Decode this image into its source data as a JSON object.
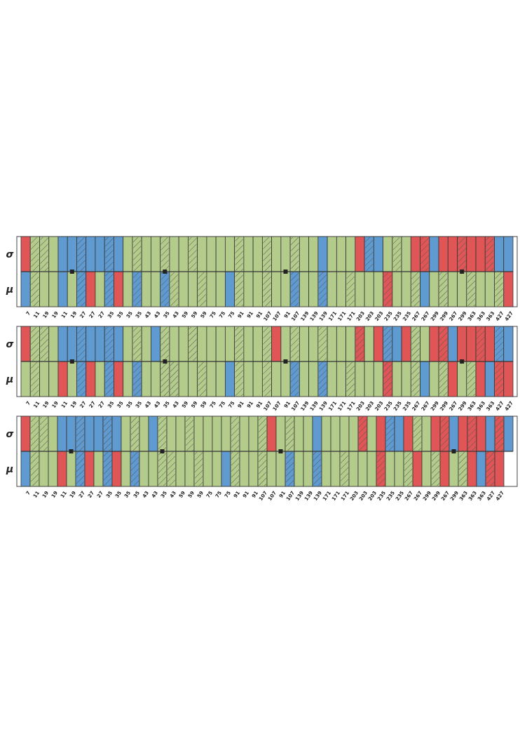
{
  "colors": {
    "red": "#e05656",
    "blue": "#5f9ad0",
    "green": "#b3cb8b",
    "hatch_line": "#555555",
    "grid": "#cccccc"
  },
  "x_tick_labels": [
    "7",
    "11",
    "19",
    "19",
    "11",
    "19",
    "27",
    "27",
    "27",
    "35",
    "35",
    "35",
    "35",
    "43",
    "43",
    "35",
    "43",
    "59",
    "59",
    "59",
    "75",
    "75",
    "75",
    "91",
    "91",
    "91",
    "107",
    "107",
    "91",
    "107",
    "139",
    "139",
    "139",
    "171",
    "171",
    "171",
    "203",
    "203",
    "203",
    "235",
    "235",
    "235",
    "267",
    "267",
    "299",
    "299",
    "267",
    "299",
    "363",
    "363",
    "363",
    "427",
    "427"
  ],
  "chart_data": [
    {
      "type": "heatmap",
      "row_labels": [
        "σ",
        "μ"
      ],
      "markers": [
        5,
        15,
        28,
        47
      ],
      "sigma": [
        "r",
        "gh",
        "gh",
        "g",
        "b",
        "b",
        "bh",
        "b",
        "b",
        "bh",
        "b",
        "g",
        "gh",
        "g",
        "g",
        "gh",
        "g",
        "g",
        "gh",
        "g",
        "g",
        "g",
        "g",
        "gh",
        "g",
        "g",
        "gh",
        "g",
        "g",
        "gh",
        "g",
        "g",
        "b",
        "g",
        "g",
        "g",
        "r",
        "bh",
        "b",
        "g",
        "gh",
        "g",
        "r",
        "rh",
        "b",
        "r",
        "r",
        "rh",
        "r",
        "r",
        "rh",
        "b",
        "b"
      ],
      "mu": [
        "b",
        "gh",
        "g",
        "g",
        "b",
        "g",
        "bh",
        "r",
        "g",
        "bh",
        "r",
        "g",
        "bh",
        "g",
        "g",
        "bh",
        "gh",
        "g",
        "g",
        "gh",
        "g",
        "g",
        "b",
        "gh",
        "g",
        "g",
        "gh",
        "g",
        "g",
        "bh",
        "g",
        "g",
        "bh",
        "g",
        "g",
        "gh",
        "g",
        "g",
        "g",
        "rh",
        "g",
        "g",
        "gh",
        "b",
        "g",
        "gh",
        "g",
        "g",
        "gh",
        "g",
        "g",
        "gh",
        "r"
      ]
    },
    {
      "type": "heatmap",
      "row_labels": [
        "σ",
        "μ"
      ],
      "markers": [
        5,
        15,
        28,
        47
      ],
      "sigma": [
        "r",
        "gh",
        "gh",
        "g",
        "b",
        "b",
        "bh",
        "b",
        "b",
        "bh",
        "b",
        "g",
        "gh",
        "g",
        "b",
        "gh",
        "g",
        "g",
        "gh",
        "g",
        "g",
        "g",
        "g",
        "gh",
        "g",
        "g",
        "gh",
        "r",
        "g",
        "gh",
        "g",
        "g",
        "gh",
        "g",
        "g",
        "g",
        "rh",
        "g",
        "r",
        "bh",
        "b",
        "r",
        "gh",
        "g",
        "r",
        "rh",
        "b",
        "r",
        "r",
        "rh",
        "r",
        "bh",
        "b"
      ],
      "mu": [
        "g",
        "gh",
        "g",
        "g",
        "r",
        "g",
        "bh",
        "r",
        "g",
        "bh",
        "r",
        "g",
        "bh",
        "g",
        "g",
        "gh",
        "gh",
        "g",
        "g",
        "gh",
        "g",
        "g",
        "b",
        "gh",
        "g",
        "g",
        "gh",
        "g",
        "g",
        "bh",
        "g",
        "g",
        "bh",
        "g",
        "g",
        "gh",
        "g",
        "g",
        "g",
        "rh",
        "g",
        "g",
        "gh",
        "b",
        "g",
        "gh",
        "r",
        "g",
        "gh",
        "r",
        "b",
        "rh",
        "r"
      ]
    },
    {
      "type": "heatmap",
      "row_labels": [
        "σ",
        "μ"
      ],
      "markers": [
        5,
        15,
        28,
        47
      ],
      "sigma": [
        "r",
        "gh",
        "gh",
        "g",
        "b",
        "b",
        "bh",
        "b",
        "b",
        "bh",
        "b",
        "g",
        "gh",
        "g",
        "b",
        "gh",
        "g",
        "g",
        "gh",
        "g",
        "g",
        "g",
        "g",
        "gh",
        "g",
        "g",
        "gh",
        "r",
        "g",
        "gh",
        "g",
        "g",
        "b",
        "g",
        "g",
        "g",
        "g",
        "rh",
        "g",
        "r",
        "bh",
        "b",
        "r",
        "gh",
        "g",
        "r",
        "rh",
        "b",
        "r",
        "rh",
        "r",
        "b",
        "rh",
        "b"
      ],
      "mu": [
        "b",
        "gh",
        "g",
        "g",
        "r",
        "g",
        "bh",
        "r",
        "g",
        "bh",
        "r",
        "g",
        "bh",
        "g",
        "g",
        "gh",
        "gh",
        "g",
        "g",
        "gh",
        "g",
        "g",
        "b",
        "gh",
        "g",
        "g",
        "gh",
        "g",
        "g",
        "bh",
        "g",
        "g",
        "bh",
        "g",
        "g",
        "gh",
        "g",
        "g",
        "g",
        "rh",
        "g",
        "g",
        "gh",
        "r",
        "g",
        "gh",
        "r",
        "g",
        "gh",
        "r",
        "b",
        "rh",
        "r"
      ]
    }
  ]
}
